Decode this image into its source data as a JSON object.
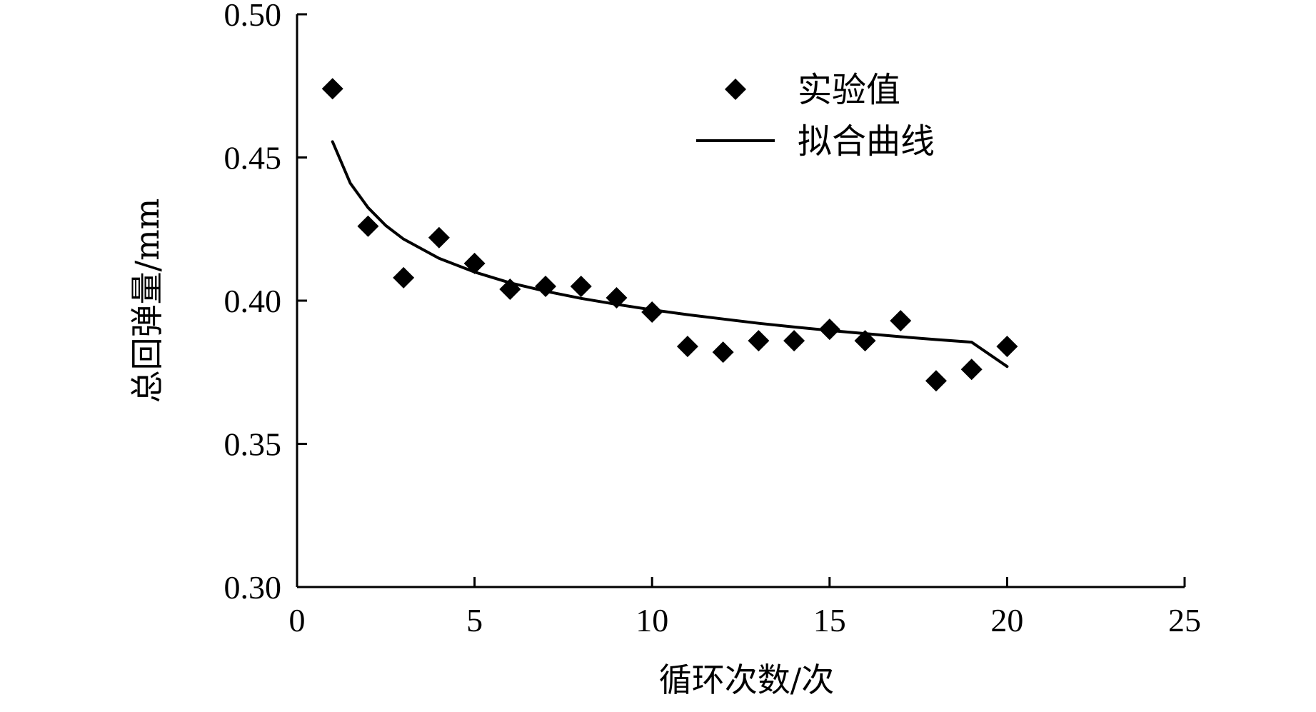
{
  "chart_data": {
    "type": "scatter",
    "title": "",
    "xlabel": "循环次数/次",
    "ylabel": "总回弹量/mm",
    "xlim": [
      0,
      25
    ],
    "ylim": [
      0.3,
      0.5
    ],
    "x_ticks": [
      "0",
      "5",
      "10",
      "15",
      "20",
      "25"
    ],
    "y_ticks": [
      "0.30",
      "0.35",
      "0.40",
      "0.45",
      "0.50"
    ],
    "grid": false,
    "legend_position": "top-right",
    "series": [
      {
        "name": "实验值",
        "kind": "markers",
        "marker": "diamond",
        "color": "#000000",
        "x": [
          1,
          2,
          3,
          4,
          5,
          6,
          7,
          8,
          9,
          10,
          11,
          12,
          13,
          14,
          15,
          16,
          17,
          18,
          19,
          20
        ],
        "y": [
          0.474,
          0.426,
          0.408,
          0.422,
          0.413,
          0.404,
          0.405,
          0.405,
          0.401,
          0.396,
          0.384,
          0.382,
          0.386,
          0.386,
          0.39,
          0.386,
          0.393,
          0.372,
          0.376,
          0.384
        ]
      },
      {
        "name": "拟合曲线",
        "kind": "line",
        "color": "#000000",
        "x": [
          1,
          1.5,
          2,
          2.5,
          3,
          4,
          5,
          6,
          7,
          8,
          9,
          10,
          11,
          12,
          13,
          14,
          15,
          16,
          17,
          18,
          19,
          20
        ],
        "y": [
          0.4555,
          0.441,
          0.4325,
          0.4262,
          0.4215,
          0.4148,
          0.41,
          0.4062,
          0.4033,
          0.4008,
          0.3987,
          0.3968,
          0.3951,
          0.3936,
          0.3921,
          0.3908,
          0.3896,
          0.3885,
          0.3874,
          0.3864,
          0.3855,
          0.377
        ]
      }
    ]
  }
}
